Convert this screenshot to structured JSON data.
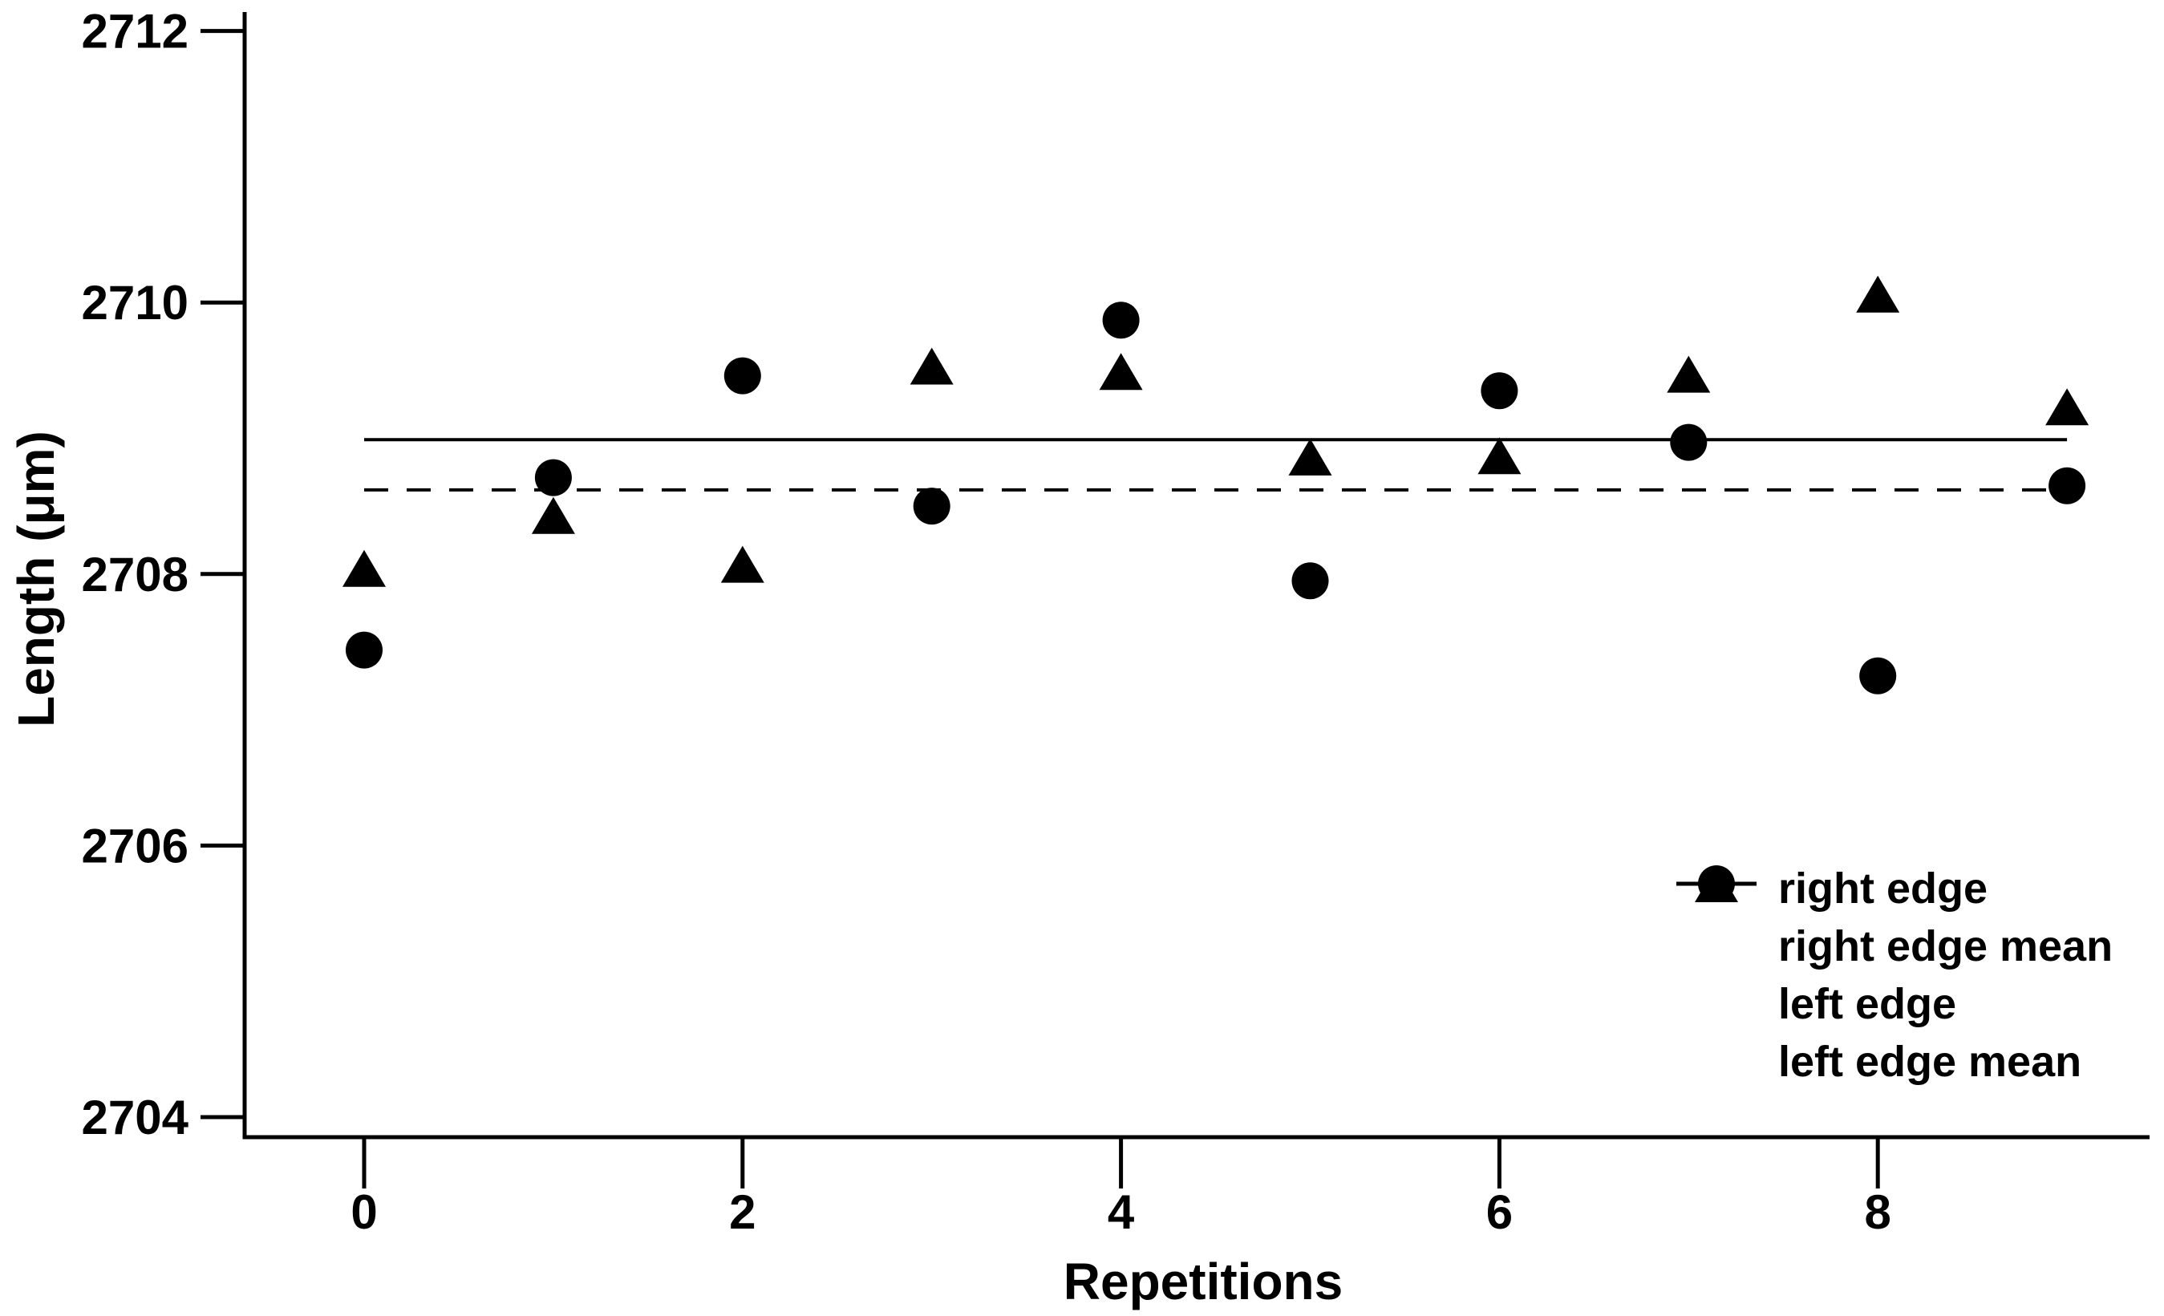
{
  "figure": {
    "background": "#ffffff",
    "foreground": "#000000"
  },
  "chart_data": {
    "type": "scatter",
    "title": "",
    "xlabel": "Repetitions",
    "ylabel": "Length (μm)",
    "x_ticks": [
      0,
      2,
      4,
      6,
      8
    ],
    "y_ticks": [
      2704,
      2706,
      2708,
      2710,
      2712
    ],
    "xlim": [
      -0.6,
      9.4
    ],
    "ylim": [
      2703.85,
      2712.1
    ],
    "grid": false,
    "x": [
      0,
      1,
      2,
      3,
      4,
      5,
      6,
      7,
      8,
      9
    ],
    "series": [
      {
        "name": "right edge",
        "type": "scatter",
        "marker": "triangle",
        "color": "#000000",
        "values": [
          2708.03,
          2708.42,
          2708.06,
          2709.52,
          2709.48,
          2708.85,
          2708.86,
          2709.46,
          2710.05,
          2709.22
        ]
      },
      {
        "name": "right edge mean",
        "type": "hline",
        "linestyle": "solid",
        "color": "#000000",
        "value": 2708.99
      },
      {
        "name": "left edge",
        "type": "scatter",
        "marker": "circle",
        "color": "#000000",
        "values": [
          2707.44,
          2708.71,
          2709.46,
          2708.5,
          2709.87,
          2707.95,
          2709.35,
          2708.97,
          2707.25,
          2708.65
        ]
      },
      {
        "name": "left edge mean",
        "type": "hline",
        "linestyle": "dashed",
        "color": "#000000",
        "value": 2708.62
      }
    ],
    "legend": {
      "position": "lower right",
      "items": [
        {
          "symbol": "triangle",
          "label": "right edge"
        },
        {
          "symbol": "solid-line",
          "label": "right edge mean"
        },
        {
          "symbol": "circle",
          "label": "left edge"
        },
        {
          "symbol": "dashed-line",
          "label": "left edge mean"
        }
      ]
    }
  }
}
